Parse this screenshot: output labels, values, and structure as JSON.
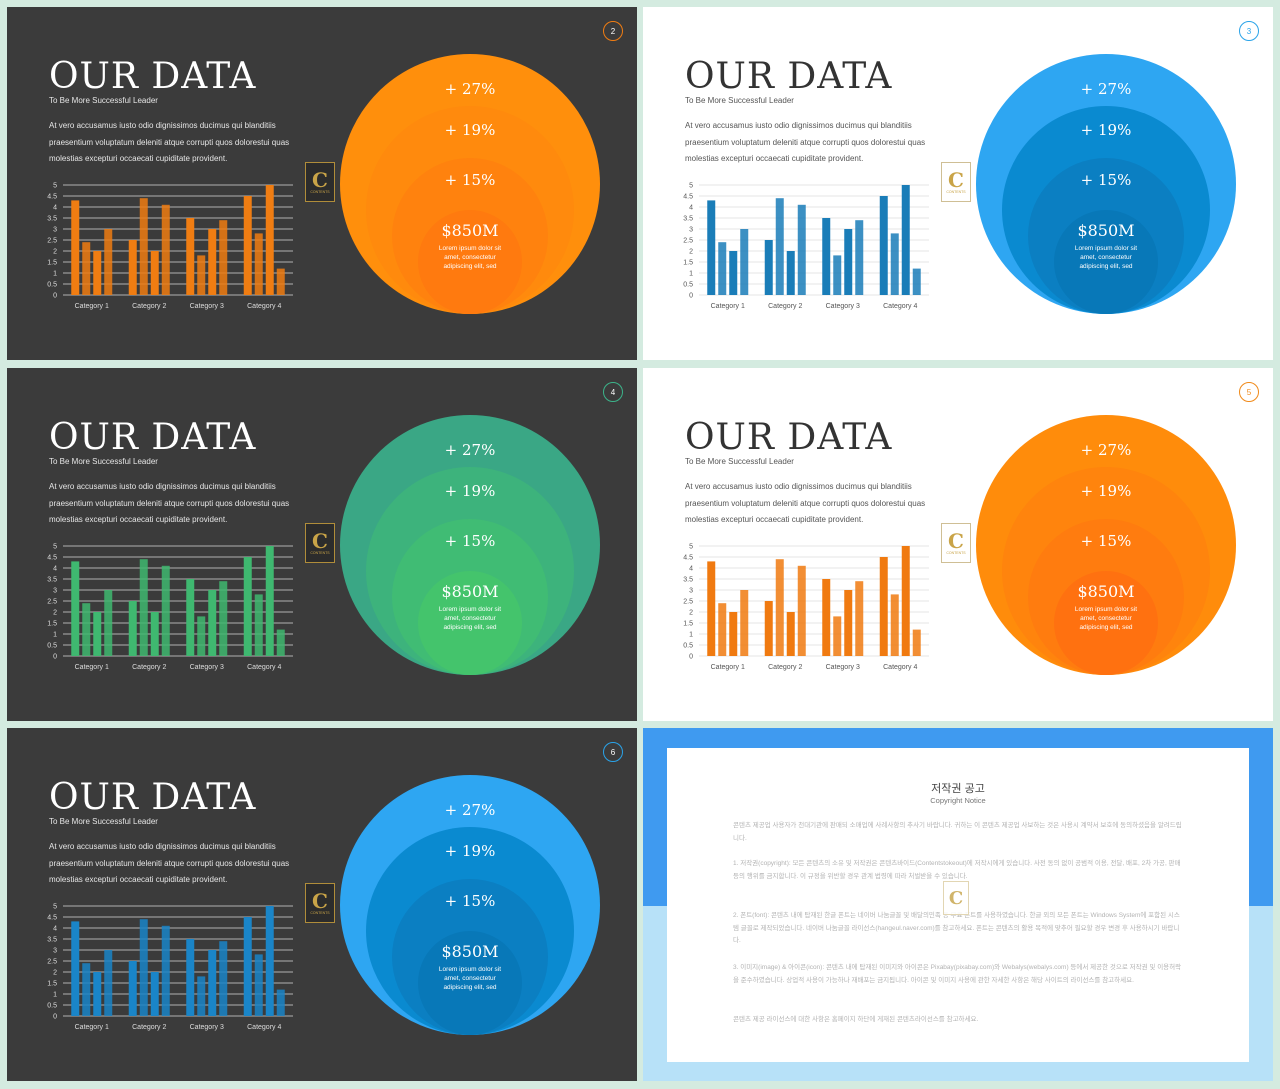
{
  "slides": [
    {
      "page": "2",
      "theme": "dark",
      "accent": "#f07d12",
      "bar_color": "#f07d12",
      "circle_colors": [
        "#ff8f0c",
        "#ff8a0d",
        "#ff820e",
        "#ff7a0f"
      ]
    },
    {
      "page": "3",
      "theme": "light",
      "accent": "#2aa3e8",
      "bar_color": "#1a7db8",
      "circle_colors": [
        "#2ea6f2",
        "#0a8ad0",
        "#0b7fc2",
        "#0878b8"
      ]
    },
    {
      "page": "4",
      "theme": "dark",
      "accent": "#3cb38a",
      "bar_color": "#3fb870",
      "circle_colors": [
        "#3aa785",
        "#3db37c",
        "#40bc74",
        "#44c46c"
      ]
    },
    {
      "page": "5",
      "theme": "light",
      "accent": "#f08a1a",
      "bar_color": "#f07a10",
      "circle_colors": [
        "#ff8c0b",
        "#ff840d",
        "#ff7c0f",
        "#ff7110"
      ]
    },
    {
      "page": "6",
      "theme": "dark",
      "accent": "#2aa3e8",
      "bar_color": "#1a85c8",
      "circle_colors": [
        "#2ea6f2",
        "#0a8ad0",
        "#0b7fc2",
        "#0878b8"
      ]
    }
  ],
  "content": {
    "title": "OUR DATA",
    "subtitle": "To Be More Successful Leader",
    "body": "At vero accusamus iusto odio dignissimos ducimus qui blanditiis praesentium voluptatum deleniti atque corrupti quos dolorestui quas molestias excepturi occaecati cupiditate provident.",
    "badge_letter": "C",
    "badge_text": "CONTENTS",
    "pct_1": "+ 27%",
    "pct_2": "+ 19%",
    "pct_3": "+ 15%",
    "amount": "$850M",
    "amount_desc": "Lorem ipsum dolor sit amet, consectetur adipiscing elit, sed"
  },
  "chart_data": {
    "type": "bar",
    "categories": [
      "Category 1",
      "Category 2",
      "Category 3",
      "Category 4"
    ],
    "series": [
      {
        "values": [
          4.3,
          2.5,
          3.5,
          4.5
        ]
      },
      {
        "values": [
          2.4,
          4.4,
          1.8,
          2.8
        ]
      },
      {
        "values": [
          2.0,
          2.0,
          3.0,
          5.0
        ]
      },
      {
        "values": [
          3.0,
          4.1,
          3.4,
          1.2
        ]
      }
    ],
    "yticks": [
      "0",
      "0.5",
      "1",
      "1.5",
      "2",
      "2.5",
      "3",
      "3.5",
      "4",
      "4.5",
      "5"
    ],
    "ylim": [
      0,
      5
    ],
    "grid": true
  },
  "copyright": {
    "title": "저작권 공고",
    "subtitle": "Copyright Notice",
    "intro": "콘텐츠 제공업 사용자가 천대기관에 판매되 소매업에 사례사항의 추사기 바랍니다. 귀하는 이 콘텐츠 제공업 사보하는 것은 사용시 계약서 보호에 동의하셨음을 알려드립니다.",
    "item1": "1. 저작권(copyright): 모든 콘텐츠의 소유 및 저작권은 콘텐츠바이드(Contentstokeout)에 저작시에게 있습니다. 사전 동의 없이 공범적 이용, 전달, 배포, 2차 가공, 판매 등의 행위를 금지합니다. 이 규정을 위반할 경우 관계 법령에 따라 처벌받을 수 있습니다.",
    "item2": "2. 폰트(font): 콘텐츠 내에 탑재된 한글 폰트는 네이버 나눔글꼴 및 배달의민족 등 무료 폰트를 사용하였습니다. 한글 외의 모든 폰트는 Windows System에 포함된 시스템 글꼴로 제작되었습니다. 네이버 나눔글꼴 라이선스(hangeul.naver.com)를 참고하세요. 폰트는 콘텐츠의 활용 목적에 맞추어 필요할 경우 변경 후 사용하시기 바랍니다.",
    "item3": "3. 이미지(image) & 아이콘(icon): 콘텐츠 내에 탑재된 이미지와 아이콘은 Pixabay(pixabay.com)와 Webalys(webalys.com) 등에서 제공한 것으로 저작권 및 이용허락을 준수하였습니다. 상업적 사용이 가능하나 재배포는 금지됩니다. 아이콘 및 이미지 사용에 관한 자세한 사항은 해당 사이트의 라이선스를 참고하세요.",
    "outro": "콘텐츠 제공 라이선스에 대한 사항은 홈페이지 하단에 게재된 콘텐츠라이선스를 참고하세요."
  }
}
